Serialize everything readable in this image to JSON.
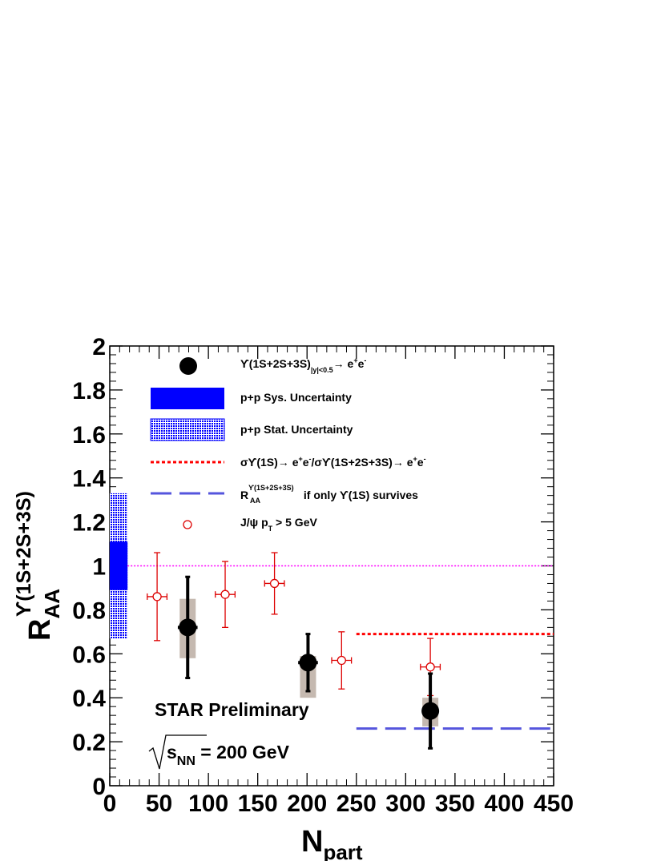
{
  "chart_data": {
    "type": "scatter",
    "xlim": [
      0,
      450
    ],
    "ylim": [
      0,
      2
    ],
    "x_ticks": [
      "0",
      "50",
      "100",
      "150",
      "200",
      "250",
      "300",
      "350",
      "400",
      "450"
    ],
    "y_ticks": [
      "0",
      "0.2",
      "0.4",
      "0.6",
      "0.8",
      "1",
      "1.2",
      "1.4",
      "1.6",
      "1.8",
      "2"
    ],
    "xlabel": {
      "main": "N",
      "sub": "part"
    },
    "ylabel": {
      "main": "R",
      "sub": "AA",
      "sup": "ϒ(1S+2S+3S)"
    },
    "annotation": "STAR Preliminary",
    "energy": {
      "root": "s",
      "sub": "NN",
      "rest": " = 200 GeV"
    },
    "reference_line": {
      "y": 1.0,
      "color": "#ff00ff"
    },
    "pp_sys_band": {
      "y_low": 0.89,
      "y_high": 1.11,
      "x_range": [
        0,
        18
      ],
      "color": "#0000ff"
    },
    "pp_stat_band": {
      "y_low": 0.67,
      "y_high": 1.33,
      "x_range": [
        0,
        18
      ],
      "color": "#0000ff"
    },
    "upsilon": [
      {
        "x": 79,
        "y": 0.72,
        "err": 0.23,
        "sys_low": 0.58,
        "sys_high": 0.85,
        "x_err": 10
      },
      {
        "x": 201,
        "y": 0.56,
        "err": 0.13,
        "sys_low": 0.4,
        "sys_high": 0.59,
        "x_err": 10
      },
      {
        "x": 325,
        "y": 0.34,
        "err": 0.17,
        "sys_low": 0.27,
        "sys_high": 0.4,
        "x_err": 0
      }
    ],
    "jpsi": [
      {
        "x": 48,
        "y": 0.86,
        "err": 0.2,
        "x_err": 10
      },
      {
        "x": 117,
        "y": 0.87,
        "err": 0.15,
        "x_err": 10
      },
      {
        "x": 167,
        "y": 0.92,
        "err": 0.14,
        "x_err": 10
      },
      {
        "x": 235,
        "y": 0.57,
        "err": 0.13,
        "x_err": 10
      },
      {
        "x": 325,
        "y": 0.54,
        "err": 0.13,
        "x_err": 10
      }
    ],
    "upsilon1s_ratio_line": {
      "y": 0.69,
      "x_range": [
        250,
        450
      ],
      "color": "#ff0000"
    },
    "only1s_line": {
      "y": 0.26,
      "x_range": [
        250,
        450
      ],
      "color": "#5555dd"
    },
    "legend": {
      "placement": "top",
      "upsilon": {
        "main": "ϒ(1S+2S+3S)",
        "sub": "|y|<0.5",
        "arrow": "→ e",
        "sup1": "+",
        "e2": "e",
        "sup2": "-"
      },
      "pp_sys": "p+p Sys. Uncertainty",
      "pp_stat": "p+p Stat. Uncertainty",
      "ratio": {
        "p1": "σϒ(1S)→ e",
        "s1": "+",
        "p2": "e",
        "s2": "-",
        "p3": "/σϒ(1S+2S+3S)→ e",
        "s3": "+",
        "p4": "e",
        "s4": "-"
      },
      "only1s": {
        "r": "R",
        "sup": "ϒ(1S+2S+3S)",
        "sub": "AA",
        "rest": " if only ϒ(1S) survives"
      },
      "jpsi": {
        "main": "J/ψ  p",
        "sub": "T",
        "rest": " > 5 GeV"
      }
    }
  }
}
